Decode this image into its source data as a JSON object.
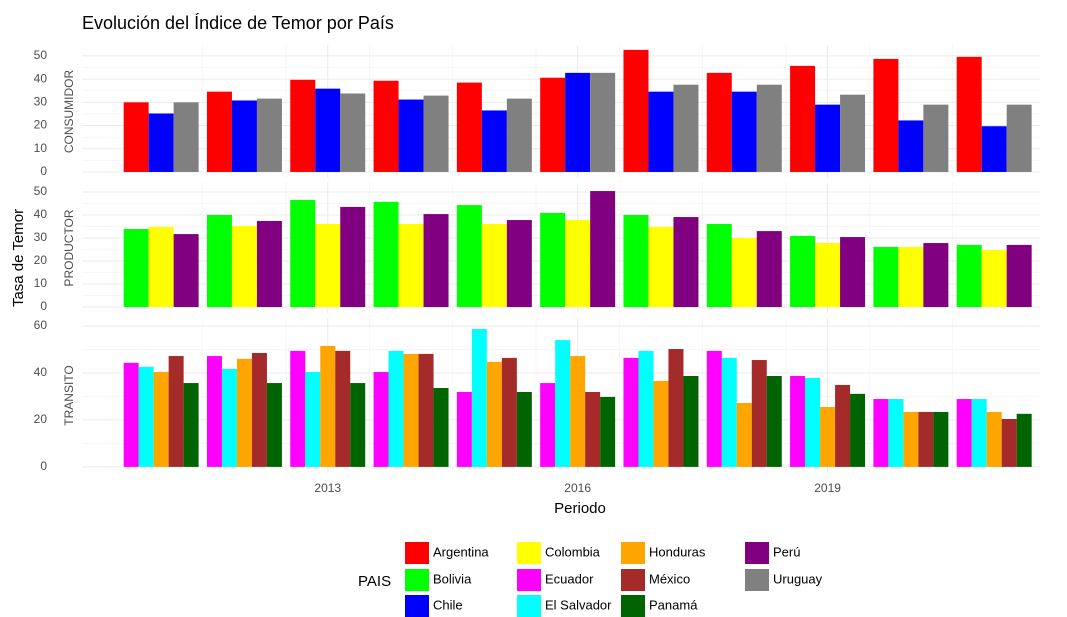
{
  "chart_data": {
    "type": "bar",
    "title": "Evolución del Índice de Temor por País",
    "x_label": "Periodo",
    "y_label": "Tasa de Temor",
    "legend_title": "PAIS",
    "x": [
      2011,
      2012,
      2013,
      2014,
      2015,
      2016,
      2017,
      2018,
      2019,
      2020,
      2021
    ],
    "xlim": [
      2010.05,
      2021.55
    ],
    "xticks": [
      2013,
      2016,
      2019
    ],
    "grid": true,
    "legend_position": "bottom",
    "facets": [
      {
        "label": "CONSUMIDOR",
        "ylim": [
          -2.6,
          54.7
        ],
        "yticks": [
          0,
          10,
          20,
          30,
          40,
          50
        ],
        "series": [
          {
            "name": "Argentina",
            "color": "#ff0000",
            "values": [
              30,
              34.6,
              39.7,
              39.3,
              38.5,
              40.6,
              52.6,
              42.7,
              45.7,
              48.7,
              49.6
            ]
          },
          {
            "name": "Chile",
            "color": "#0000ff",
            "values": [
              25.2,
              30.8,
              35.9,
              31.2,
              26.5,
              42.7,
              34.6,
              34.6,
              29,
              22.2,
              19.7
            ]
          },
          {
            "name": "Uruguay",
            "color": "#808080",
            "values": [
              30,
              31.6,
              33.8,
              32.9,
              31.6,
              42.7,
              37.6,
              37.6,
              33.3,
              29,
              29
            ]
          }
        ]
      },
      {
        "label": "PRODUCTOR",
        "ylim": [
          -2.6,
          53.9
        ],
        "yticks": [
          0,
          10,
          20,
          30,
          40,
          50
        ],
        "series": [
          {
            "name": "Bolivia",
            "color": "#00ff00",
            "values": [
              33.9,
              40,
              46.5,
              45.7,
              44.3,
              40.9,
              40,
              36.1,
              30.9,
              26.1,
              27
            ]
          },
          {
            "name": "Colombia",
            "color": "#ffff00",
            "values": [
              34.8,
              35.2,
              36.1,
              36.1,
              36.1,
              37.8,
              34.8,
              30,
              27.8,
              26.1,
              24.8
            ]
          },
          {
            "name": "Perú",
            "color": "#800080",
            "values": [
              31.7,
              37.4,
              43.5,
              40.4,
              37.8,
              50.4,
              39.1,
              33,
              30.4,
              27.8,
              27
            ]
          }
        ]
      },
      {
        "label": "TRANSITO",
        "ylim": [
          -2.6,
          63.4
        ],
        "yticks": [
          0,
          20,
          40,
          60
        ],
        "series": [
          {
            "name": "Ecuador",
            "color": "#ff00ff",
            "values": [
              44.3,
              47.2,
              49.4,
              40.4,
              31.9,
              35.7,
              46.4,
              49.4,
              38.7,
              28.9,
              28.9
            ]
          },
          {
            "name": "El Salvador",
            "color": "#00ffff",
            "values": [
              42.6,
              41.7,
              40.4,
              49.4,
              58.7,
              54,
              49.4,
              46.4,
              37.9,
              28.9,
              28.9
            ]
          },
          {
            "name": "Honduras",
            "color": "#ffa500",
            "values": [
              40.4,
              46,
              51.5,
              48.1,
              44.7,
              47.2,
              36.6,
              27.2,
              25.5,
              23.4,
              23.4
            ]
          },
          {
            "name": "México",
            "color": "#a52a2a",
            "values": [
              47.2,
              48.5,
              49.4,
              48.1,
              46.4,
              31.9,
              50.2,
              45.5,
              34.9,
              23.4,
              20.4
            ]
          },
          {
            "name": "Panamá",
            "color": "#006400",
            "values": [
              35.7,
              35.7,
              35.7,
              33.6,
              31.9,
              29.8,
              38.7,
              38.7,
              31.1,
              23.4,
              22.6
            ]
          }
        ]
      }
    ]
  }
}
